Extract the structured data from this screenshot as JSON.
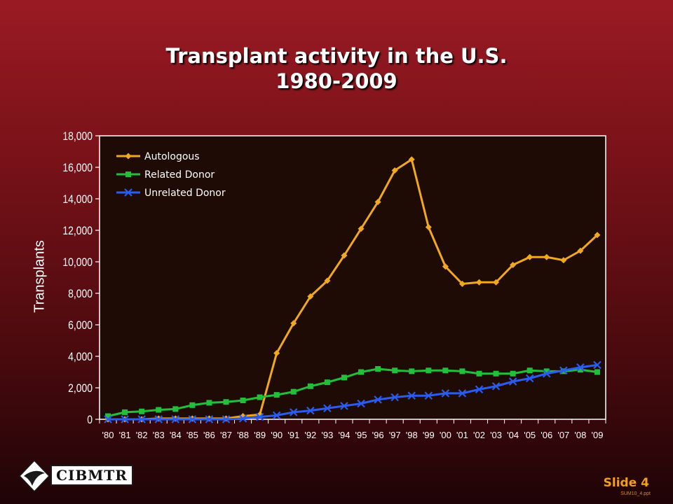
{
  "title_line1": "Transplant activity in the U.S.",
  "title_line2": "1980-2009",
  "slide_label": "Slide 4",
  "file_name": "SUM10_4.ppt",
  "logo_text": "CIBMTR",
  "colors": {
    "autologous": "#f0a820",
    "related": "#22c03a",
    "unrelated": "#2a5cf0",
    "plot_bg": "#1e0b05"
  },
  "chart_data": {
    "type": "line",
    "ylabel": "Transplants",
    "xlabel": "",
    "ylim": [
      0,
      18000
    ],
    "yticks": [
      "0",
      "2,000",
      "4,000",
      "6,000",
      "8,000",
      "10,000",
      "12,000",
      "14,000",
      "16,000",
      "18,000"
    ],
    "ytick_values": [
      0,
      2000,
      4000,
      6000,
      8000,
      10000,
      12000,
      14000,
      16000,
      18000
    ],
    "grid": false,
    "legend_position": "top-left",
    "categories": [
      "'80",
      "'81",
      "'82",
      "'83",
      "'84",
      "'85",
      "'86",
      "'87",
      "'88",
      "'89",
      "'90",
      "'91",
      "'92",
      "'93",
      "'94",
      "'95",
      "'96",
      "'97",
      "'98",
      "'99",
      "'00",
      "'01",
      "'02",
      "'03",
      "'04",
      "'05",
      "'06",
      "'07",
      "'08",
      "'09"
    ],
    "series": [
      {
        "name": "Autologous",
        "marker": "diamond",
        "values": [
          0,
          0,
          0,
          50,
          50,
          50,
          50,
          50,
          200,
          300,
          4200,
          6100,
          7800,
          8800,
          10400,
          12100,
          13800,
          15800,
          16500,
          12200,
          9700,
          8600,
          8700,
          8700,
          9800,
          10300,
          10300,
          10100,
          10700,
          11700
        ]
      },
      {
        "name": "Related Donor",
        "marker": "square",
        "values": [
          200,
          450,
          500,
          600,
          650,
          900,
          1050,
          1100,
          1200,
          1400,
          1550,
          1750,
          2100,
          2350,
          2650,
          3000,
          3200,
          3100,
          3050,
          3100,
          3100,
          3050,
          2900,
          2900,
          2900,
          3100,
          3050,
          3050,
          3150,
          3000
        ]
      },
      {
        "name": "Unrelated Donor",
        "marker": "x",
        "values": [
          0,
          0,
          0,
          0,
          0,
          0,
          0,
          0,
          50,
          150,
          250,
          450,
          550,
          700,
          850,
          1000,
          1250,
          1400,
          1500,
          1500,
          1650,
          1650,
          1900,
          2100,
          2400,
          2600,
          2900,
          3100,
          3300,
          3450
        ]
      }
    ]
  }
}
